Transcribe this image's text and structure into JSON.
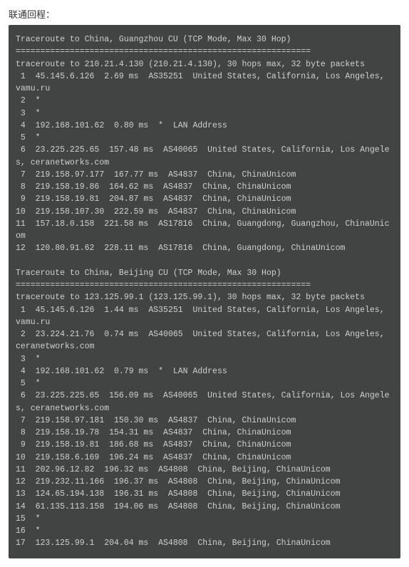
{
  "header": {
    "title": "联通回程："
  },
  "terminal": {
    "background_color": "#424444",
    "text_color": "#cfcfcf",
    "font_family": "Consolas, Courier New, monospace",
    "font_size": 11.5,
    "traces": [
      {
        "title": "Traceroute to China, Guangzhou CU (TCP Mode, Max 30 Hop)",
        "divider": "============================================================",
        "summary": "traceroute to 210.21.4.130 (210.21.4.130), 30 hops max, 32 byte packets",
        "hops": [
          " 1  45.145.6.126  2.69 ms  AS35251  United States, California, Los Angeles, vamu.ru",
          " 2  *",
          " 3  *",
          " 4  192.168.101.62  0.80 ms  *  LAN Address",
          " 5  *",
          " 6  23.225.225.65  157.48 ms  AS40065  United States, California, Los Angeles, ceranetworks.com",
          " 7  219.158.97.177  167.77 ms  AS4837  China, ChinaUnicom",
          " 8  219.158.19.86  164.62 ms  AS4837  China, ChinaUnicom",
          " 9  219.158.19.81  204.87 ms  AS4837  China, ChinaUnicom",
          "10  219.158.107.30  222.59 ms  AS4837  China, ChinaUnicom",
          "11  157.18.0.158  221.58 ms  AS17816  China, Guangdong, Guangzhou, ChinaUnicom",
          "12  120.80.91.62  228.11 ms  AS17816  China, Guangdong, ChinaUnicom"
        ]
      },
      {
        "title": "Traceroute to China, Beijing CU (TCP Mode, Max 30 Hop)",
        "divider": "============================================================",
        "summary": "traceroute to 123.125.99.1 (123.125.99.1), 30 hops max, 32 byte packets",
        "hops": [
          " 1  45.145.6.126  1.44 ms  AS35251  United States, California, Los Angeles, vamu.ru",
          " 2  23.224.21.76  0.74 ms  AS40065  United States, California, Los Angeles, ceranetworks.com",
          " 3  *",
          " 4  192.168.101.62  0.79 ms  *  LAN Address",
          " 5  *",
          " 6  23.225.225.65  156.09 ms  AS40065  United States, California, Los Angeles, ceranetworks.com",
          " 7  219.158.97.181  150.30 ms  AS4837  China, ChinaUnicom",
          " 8  219.158.19.78  154.31 ms  AS4837  China, ChinaUnicom",
          " 9  219.158.19.81  186.68 ms  AS4837  China, ChinaUnicom",
          "10  219.158.6.169  196.24 ms  AS4837  China, ChinaUnicom",
          "11  202.96.12.82  196.32 ms  AS4808  China, Beijing, ChinaUnicom",
          "12  219.232.11.166  196.37 ms  AS4808  China, Beijing, ChinaUnicom",
          "13  124.65.194.138  196.31 ms  AS4808  China, Beijing, ChinaUnicom",
          "14  61.135.113.158  194.06 ms  AS4808  China, Beijing, ChinaUnicom",
          "15  *",
          "16  *",
          "17  123.125.99.1  204.04 ms  AS4808  China, Beijing, ChinaUnicom"
        ]
      }
    ]
  }
}
